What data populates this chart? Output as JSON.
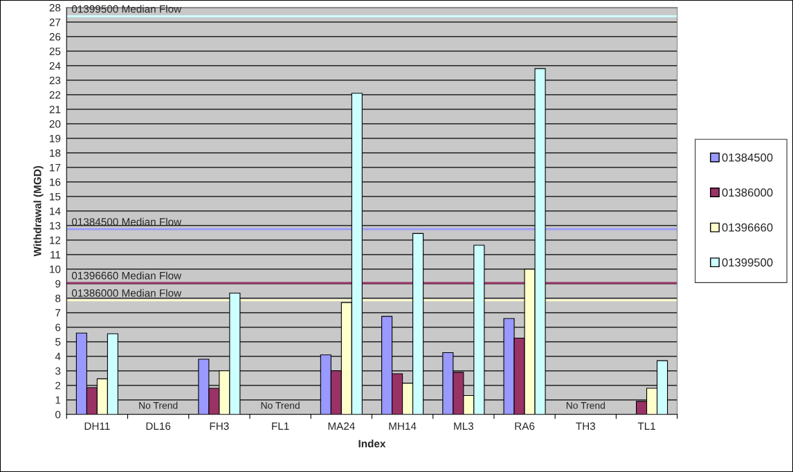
{
  "chart_data": {
    "type": "bar",
    "xlabel": "Index",
    "ylabel": "Withdrawal (MGD)",
    "categories": [
      "DH11",
      "DL16",
      "FH3",
      "FL1",
      "MA24",
      "MH14",
      "ML3",
      "RA6",
      "TH3",
      "TL1"
    ],
    "series": [
      {
        "name": "01384500",
        "color": "#9999ff",
        "values": [
          5.6,
          null,
          3.8,
          null,
          4.1,
          6.75,
          4.25,
          6.6,
          null,
          null
        ]
      },
      {
        "name": "01386000",
        "color": "#993366",
        "values": [
          1.85,
          null,
          1.8,
          null,
          3.0,
          2.8,
          2.9,
          5.25,
          null,
          0.9
        ]
      },
      {
        "name": "01396660",
        "color": "#ffffcc",
        "values": [
          2.45,
          null,
          3.0,
          null,
          7.7,
          2.15,
          1.3,
          10.0,
          null,
          1.8
        ]
      },
      {
        "name": "01399500",
        "color": "#ccffff",
        "values": [
          5.55,
          null,
          8.35,
          null,
          22.1,
          12.45,
          11.65,
          23.8,
          null,
          3.7
        ]
      }
    ],
    "ylim": [
      0,
      28
    ],
    "yticks": [
      0,
      1,
      2,
      3,
      4,
      5,
      6,
      7,
      8,
      9,
      10,
      11,
      12,
      13,
      14,
      15,
      16,
      17,
      18,
      19,
      20,
      21,
      22,
      23,
      24,
      25,
      26,
      27,
      28
    ],
    "grid": "y",
    "legend": "right",
    "ref_lines": [
      {
        "axis": "y",
        "value": 27.4,
        "label": "01399500 Median Flow",
        "color": "#ccffff"
      },
      {
        "axis": "y",
        "value": 12.75,
        "label": "01384500 Median Flow",
        "color": "#9999ff"
      },
      {
        "axis": "y",
        "value": 9.05,
        "label": "01396660 Median Flow",
        "color": "#993366"
      },
      {
        "axis": "y",
        "value": 7.85,
        "label": "01386000 Median Flow",
        "color": "#ffffcc"
      }
    ],
    "annotations": [
      "No Trend",
      "No Trend",
      "No Trend"
    ]
  }
}
